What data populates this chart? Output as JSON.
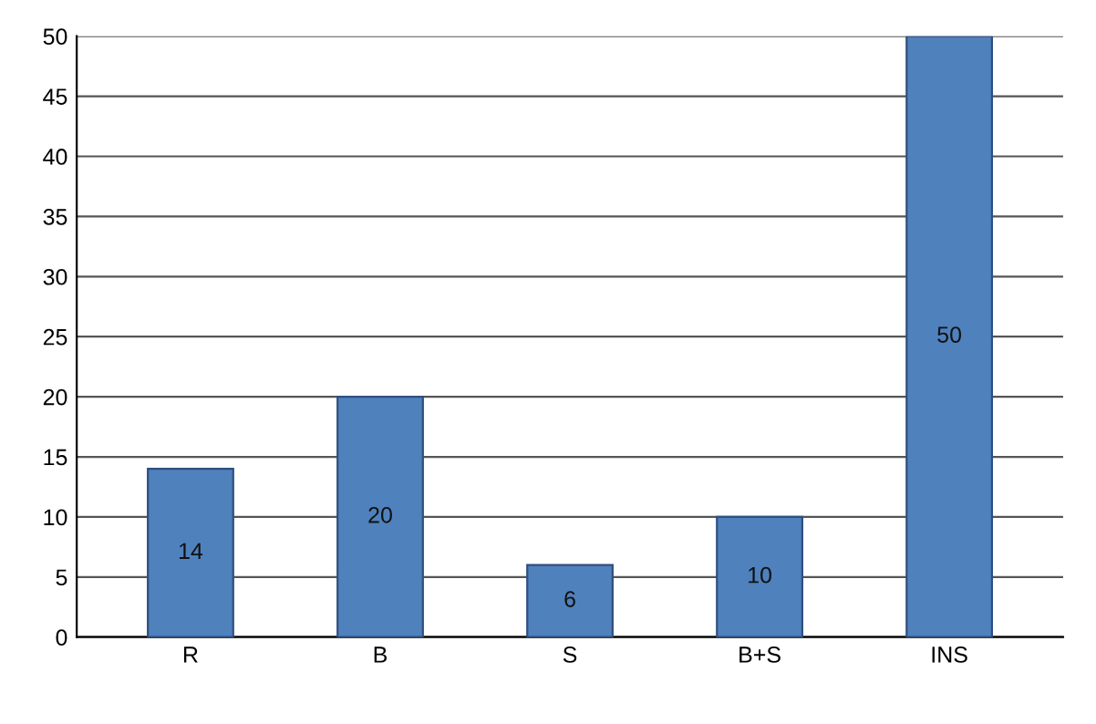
{
  "chart_data": {
    "type": "bar",
    "categories": [
      "R",
      "B",
      "S",
      "B+S",
      "INS"
    ],
    "values": [
      14,
      20,
      6,
      10,
      50
    ],
    "color": "#4f81bd",
    "ylim": [
      0,
      50
    ],
    "yticks": [
      0,
      5,
      10,
      15,
      20,
      25,
      30,
      35,
      40,
      45,
      50
    ],
    "grid": "y",
    "data_labels": true
  }
}
